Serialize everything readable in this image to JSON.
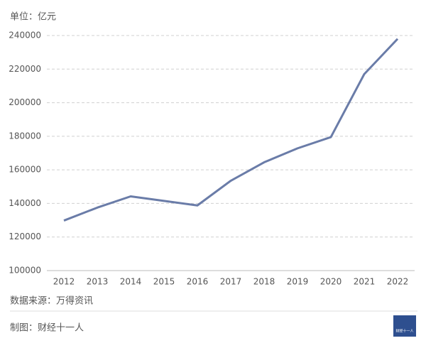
{
  "chart_data": {
    "type": "line",
    "unit_label": "单位：亿元",
    "categories": [
      "2012",
      "2013",
      "2014",
      "2015",
      "2016",
      "2017",
      "2018",
      "2019",
      "2020",
      "2021",
      "2022"
    ],
    "series": [
      {
        "color": "#6a7ca8",
        "values": [
          129800,
          137500,
          144200,
          141500,
          138800,
          153500,
          164500,
          172800,
          179500,
          217000,
          238000
        ]
      }
    ],
    "ylim": [
      100000,
      240000
    ],
    "yticks": [
      100000,
      120000,
      140000,
      160000,
      180000,
      200000,
      220000,
      240000
    ],
    "grid": true,
    "source": "数据来源：万得资讯",
    "credit": "制图：财经十一人",
    "logo_text": "财经十一人"
  }
}
